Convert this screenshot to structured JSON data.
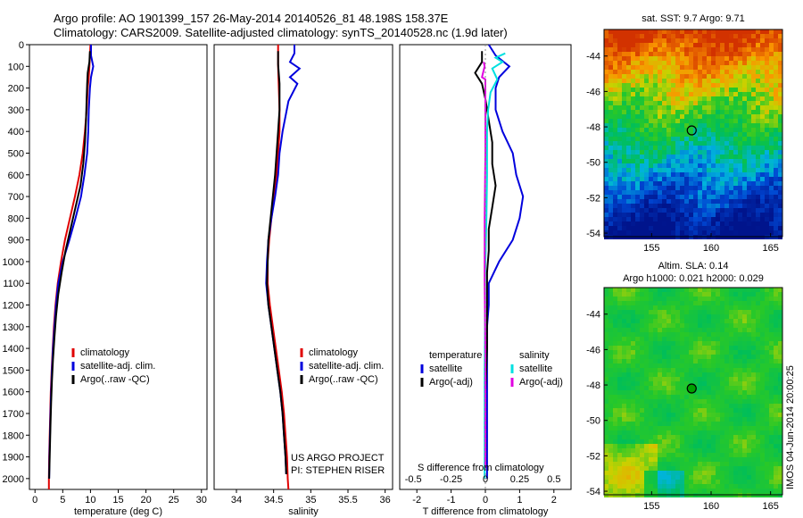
{
  "header": {
    "line1": "Argo profile: AO 1901399_157 26-May-2014 20140526_81 48.198S 158.37E",
    "line2": "Climatology: CARS2009. Satellite-adjusted climatology: synTS_20140528.nc (1.9d later)"
  },
  "footer": {
    "project": "US ARGO PROJECT",
    "pi": "PI: STEPHEN RISER"
  },
  "side_stamp": "IMOS 04-Jun-2014 20:00:25",
  "colors": {
    "climatology": "#e00000",
    "satellite": "#0000dd",
    "argo": "#000000",
    "sat_salinity": "#00e0e0",
    "argo_salinity": "#e000e0"
  },
  "chart_data": [
    {
      "type": "line",
      "panel": "temperature",
      "xlabel": "temperature (deg C)",
      "ylabel": "",
      "xlim": [
        -1,
        31
      ],
      "ylim": [
        2050,
        0
      ],
      "xticks": [
        0,
        5,
        10,
        15,
        20,
        25,
        30
      ],
      "yticks": [
        0,
        100,
        200,
        300,
        400,
        500,
        600,
        700,
        800,
        900,
        1000,
        1100,
        1200,
        1300,
        1400,
        1500,
        1600,
        1700,
        1800,
        1900,
        2000
      ],
      "legend": [
        "climatology",
        "satellite-adj. clim.",
        "Argo(..raw -QC)"
      ],
      "series": [
        {
          "name": "climatology",
          "color": "#e00000",
          "points": [
            [
              10.0,
              0
            ],
            [
              9.9,
              50
            ],
            [
              9.8,
              100
            ],
            [
              9.7,
              150
            ],
            [
              9.5,
              200
            ],
            [
              9.3,
              300
            ],
            [
              9.0,
              400
            ],
            [
              8.6,
              500
            ],
            [
              8.0,
              600
            ],
            [
              7.2,
              700
            ],
            [
              6.3,
              800
            ],
            [
              5.4,
              900
            ],
            [
              4.7,
              1000
            ],
            [
              4.1,
              1100
            ],
            [
              3.7,
              1200
            ],
            [
              3.4,
              1300
            ],
            [
              3.2,
              1400
            ],
            [
              3.0,
              1500
            ],
            [
              2.85,
              1600
            ],
            [
              2.75,
              1700
            ],
            [
              2.65,
              1800
            ],
            [
              2.55,
              1900
            ],
            [
              2.5,
              2000
            ],
            [
              2.5,
              2050
            ]
          ]
        },
        {
          "name": "satellite-adj. clim.",
          "color": "#0000dd",
          "points": [
            [
              10.1,
              0
            ],
            [
              10.1,
              50
            ],
            [
              10.5,
              100
            ],
            [
              10.1,
              150
            ],
            [
              9.9,
              200
            ],
            [
              9.7,
              300
            ],
            [
              9.6,
              400
            ],
            [
              9.4,
              500
            ],
            [
              8.9,
              600
            ],
            [
              8.3,
              700
            ],
            [
              7.3,
              800
            ],
            [
              6.2,
              900
            ],
            [
              5.0,
              1000
            ],
            [
              4.2,
              1100
            ],
            [
              3.8,
              1200
            ],
            [
              3.5,
              1300
            ],
            [
              3.25,
              1400
            ],
            [
              3.05,
              1500
            ],
            [
              2.9,
              1600
            ],
            [
              2.8,
              1700
            ],
            [
              2.7,
              1800
            ],
            [
              2.6,
              1900
            ],
            [
              2.55,
              2000
            ]
          ]
        },
        {
          "name": "Argo(..raw -QC)",
          "color": "#000000",
          "points": [
            [
              9.9,
              30
            ],
            [
              9.8,
              80
            ],
            [
              9.5,
              130
            ],
            [
              9.4,
              180
            ],
            [
              9.3,
              250
            ],
            [
              9.2,
              350
            ],
            [
              9.0,
              450
            ],
            [
              8.7,
              550
            ],
            [
              8.2,
              650
            ],
            [
              7.3,
              750
            ],
            [
              6.4,
              850
            ],
            [
              5.5,
              950
            ],
            [
              4.8,
              1050
            ],
            [
              4.2,
              1150
            ],
            [
              3.8,
              1250
            ],
            [
              3.5,
              1350
            ],
            [
              3.25,
              1450
            ],
            [
              3.05,
              1550
            ],
            [
              2.9,
              1650
            ],
            [
              2.8,
              1750
            ],
            [
              2.7,
              1850
            ],
            [
              2.6,
              1950
            ],
            [
              2.55,
              2000
            ]
          ]
        }
      ]
    },
    {
      "type": "line",
      "panel": "salinity",
      "xlabel": "salinity",
      "ylabel": "",
      "xlim": [
        33.7,
        36.1
      ],
      "ylim": [
        2050,
        0
      ],
      "xticks": [
        34,
        34.5,
        35,
        35.5,
        36
      ],
      "legend": [
        "climatology",
        "satellite-adj. clim.",
        "Argo(..raw -QC)"
      ],
      "series": [
        {
          "name": "climatology",
          "color": "#e00000",
          "points": [
            [
              34.56,
              0
            ],
            [
              34.56,
              100
            ],
            [
              34.57,
              200
            ],
            [
              34.58,
              300
            ],
            [
              34.58,
              400
            ],
            [
              34.56,
              500
            ],
            [
              34.54,
              600
            ],
            [
              34.51,
              700
            ],
            [
              34.47,
              800
            ],
            [
              34.44,
              900
            ],
            [
              34.42,
              1000
            ],
            [
              34.42,
              1100
            ],
            [
              34.45,
              1200
            ],
            [
              34.49,
              1300
            ],
            [
              34.53,
              1400
            ],
            [
              34.57,
              1500
            ],
            [
              34.61,
              1600
            ],
            [
              34.64,
              1700
            ],
            [
              34.66,
              1800
            ],
            [
              34.68,
              1900
            ],
            [
              34.69,
              2000
            ],
            [
              34.7,
              2050
            ]
          ]
        },
        {
          "name": "satellite-adj. clim.",
          "color": "#0000dd",
          "points": [
            [
              34.78,
              0
            ],
            [
              34.78,
              40
            ],
            [
              34.72,
              80
            ],
            [
              34.85,
              110
            ],
            [
              34.72,
              150
            ],
            [
              34.82,
              180
            ],
            [
              34.7,
              260
            ],
            [
              34.62,
              400
            ],
            [
              34.58,
              500
            ],
            [
              34.56,
              600
            ],
            [
              34.52,
              700
            ],
            [
              34.47,
              800
            ],
            [
              34.43,
              900
            ],
            [
              34.41,
              1000
            ],
            [
              34.4,
              1100
            ],
            [
              34.43,
              1200
            ],
            [
              34.47,
              1300
            ],
            [
              34.51,
              1400
            ],
            [
              34.55,
              1500
            ],
            [
              34.59,
              1600
            ],
            [
              34.62,
              1700
            ],
            [
              34.64,
              1800
            ],
            [
              34.66,
              1900
            ],
            [
              34.67,
              1980
            ]
          ]
        },
        {
          "name": "Argo(..raw -QC)",
          "color": "#000000",
          "points": [
            [
              34.56,
              30
            ],
            [
              34.56,
              90
            ],
            [
              34.58,
              180
            ],
            [
              34.58,
              300
            ],
            [
              34.56,
              400
            ],
            [
              34.54,
              500
            ],
            [
              34.52,
              600
            ],
            [
              34.49,
              700
            ],
            [
              34.46,
              800
            ],
            [
              34.43,
              900
            ],
            [
              34.42,
              1000
            ],
            [
              34.41,
              1100
            ],
            [
              34.43,
              1200
            ],
            [
              34.47,
              1300
            ],
            [
              34.51,
              1400
            ],
            [
              34.55,
              1500
            ],
            [
              34.59,
              1600
            ],
            [
              34.62,
              1700
            ],
            [
              34.64,
              1800
            ],
            [
              34.66,
              1900
            ],
            [
              34.67,
              1980
            ]
          ]
        }
      ]
    },
    {
      "type": "line",
      "panel": "differences",
      "xlabel": "T difference from climatology",
      "xlabel2": "S difference from climatology",
      "ylabel": "",
      "xlim": [
        -2.5,
        2.5
      ],
      "ylim": [
        2050,
        0
      ],
      "xticks": [
        -2,
        -1,
        0,
        1,
        2
      ],
      "sticks": [
        -0.5,
        -0.25,
        0,
        0.25,
        0.5
      ],
      "s_tick_labels": [
        "-0.5",
        "-0.25",
        "0",
        "0.25",
        "0.5"
      ],
      "legend_headers": [
        "temperature",
        "salinity"
      ],
      "legend": [
        {
          "group": "temperature",
          "label": "satellite",
          "color": "#0000dd"
        },
        {
          "group": "temperature",
          "label": "Argo(-adj)",
          "color": "#000000"
        },
        {
          "group": "salinity",
          "label": "satellite",
          "color": "#00e0e0"
        },
        {
          "group": "salinity",
          "label": "Argo(-adj)",
          "color": "#e000e0"
        }
      ],
      "series": [
        {
          "name": "satellite",
          "group": "temperature",
          "color": "#0000dd",
          "points": [
            [
              0.1,
              0
            ],
            [
              0.3,
              50
            ],
            [
              0.7,
              100
            ],
            [
              0.4,
              150
            ],
            [
              0.3,
              200
            ],
            [
              0.3,
              300
            ],
            [
              0.5,
              400
            ],
            [
              0.8,
              500
            ],
            [
              0.9,
              600
            ],
            [
              1.1,
              700
            ],
            [
              1.0,
              800
            ],
            [
              0.8,
              900
            ],
            [
              0.4,
              1000
            ],
            [
              0.1,
              1100
            ],
            [
              0.1,
              1200
            ],
            [
              0.05,
              1300
            ],
            [
              0.05,
              1400
            ],
            [
              0.05,
              1500
            ],
            [
              0.05,
              1600
            ],
            [
              0.05,
              1700
            ],
            [
              0.05,
              1800
            ],
            [
              0.05,
              1900
            ],
            [
              0.05,
              2000
            ]
          ]
        },
        {
          "name": "Argo(-adj)",
          "group": "temperature",
          "color": "#000000",
          "points": [
            [
              -0.1,
              30
            ],
            [
              -0.1,
              80
            ],
            [
              -0.3,
              130
            ],
            [
              -0.1,
              180
            ],
            [
              0.0,
              250
            ],
            [
              0.1,
              350
            ],
            [
              0.2,
              450
            ],
            [
              0.2,
              550
            ],
            [
              0.3,
              650
            ],
            [
              0.2,
              750
            ],
            [
              0.1,
              850
            ],
            [
              0.1,
              950
            ],
            [
              0.05,
              1050
            ],
            [
              0.05,
              1150
            ],
            [
              0.05,
              1250
            ],
            [
              0.05,
              1400
            ],
            [
              0.0,
              1600
            ],
            [
              0.0,
              1800
            ],
            [
              0.0,
              1950
            ]
          ]
        },
        {
          "name": "satellite",
          "group": "salinity",
          "color": "#00e0e0",
          "points": [
            [
              0.58,
              40
            ],
            [
              0.3,
              60
            ],
            [
              0.5,
              80
            ],
            [
              0.2,
              110
            ],
            [
              0.35,
              160
            ],
            [
              0.15,
              220
            ],
            [
              0.08,
              300
            ],
            [
              0.05,
              400
            ],
            [
              0.05,
              500
            ],
            [
              0.05,
              600
            ],
            [
              0.03,
              800
            ],
            [
              0.0,
              1000
            ],
            [
              -0.01,
              1100
            ],
            [
              -0.01,
              1300
            ],
            [
              -0.02,
              1500
            ],
            [
              -0.02,
              1700
            ],
            [
              -0.02,
              1900
            ],
            [
              -0.02,
              2000
            ]
          ]
        },
        {
          "name": "Argo(-adj)",
          "group": "salinity",
          "color": "#e000e0",
          "points": [
            [
              -0.05,
              80
            ],
            [
              -0.02,
              100
            ],
            [
              -0.1,
              150
            ],
            [
              0.0,
              160
            ],
            [
              0.0,
              200
            ],
            [
              0.0,
              300
            ],
            [
              0.0,
              500
            ],
            [
              -0.02,
              800
            ],
            [
              -0.02,
              1100
            ],
            [
              0.0,
              1400
            ],
            [
              0.0,
              1700
            ],
            [
              0.0,
              1950
            ]
          ]
        }
      ]
    },
    {
      "type": "heatmap",
      "panel": "sst_map",
      "title": "sat. SST: 9.7 Argo: 9.71",
      "xlim": [
        151,
        166
      ],
      "ylim": [
        -54.2,
        -42.5
      ],
      "xticks": [
        155,
        160,
        165
      ],
      "yticks": [
        -44,
        -46,
        -48,
        -50,
        -52,
        -54
      ],
      "argo_position": [
        158.37,
        -48.198
      ]
    },
    {
      "type": "heatmap",
      "panel": "sla_map",
      "title": "Altim. SLA: 0.14",
      "subtitle": "Argo h1000: 0.021 h2000: 0.029",
      "xlim": [
        151,
        166
      ],
      "ylim": [
        -54.2,
        -42.5
      ],
      "xticks": [
        155,
        160,
        165
      ],
      "yticks": [
        -44,
        -46,
        -48,
        -50,
        -52,
        -54
      ],
      "argo_position": [
        158.37,
        -48.198
      ]
    }
  ]
}
